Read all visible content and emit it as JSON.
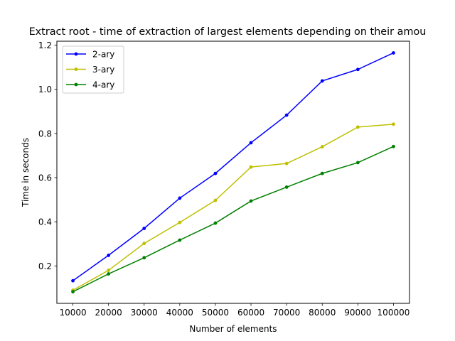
{
  "chart_data": {
    "type": "line",
    "title": "Extract root - time of extraction of largest elements depending on their amou",
    "xlabel": "Number of elements",
    "ylabel": "Time in seconds",
    "x": [
      10000,
      20000,
      30000,
      40000,
      50000,
      60000,
      70000,
      80000,
      90000,
      100000
    ],
    "xticks": [
      "10000",
      "20000",
      "30000",
      "40000",
      "50000",
      "60000",
      "70000",
      "80000",
      "90000",
      "100000"
    ],
    "yticks": [
      "0.2",
      "0.4",
      "0.6",
      "0.8",
      "1.0",
      "1.2"
    ],
    "ytick_values": [
      0.2,
      0.4,
      0.6,
      0.8,
      1.0,
      1.2
    ],
    "xlim": [
      5500,
      104500
    ],
    "ylim": [
      0.0305,
      1.218
    ],
    "grid": false,
    "legend_position": "upper-left",
    "series": [
      {
        "name": "2-ary",
        "color": "#0000ff",
        "values": [
          0.133,
          0.248,
          0.37,
          0.507,
          0.619,
          0.758,
          0.883,
          1.038,
          1.09,
          1.165
        ]
      },
      {
        "name": "3-ary",
        "color": "#bfbf00",
        "values": [
          0.09,
          0.18,
          0.302,
          0.397,
          0.497,
          0.648,
          0.664,
          0.74,
          0.829,
          0.842
        ]
      },
      {
        "name": "4-ary",
        "color": "#008000",
        "values": [
          0.083,
          0.164,
          0.237,
          0.317,
          0.394,
          0.494,
          0.557,
          0.619,
          0.668,
          0.741
        ]
      }
    ]
  }
}
